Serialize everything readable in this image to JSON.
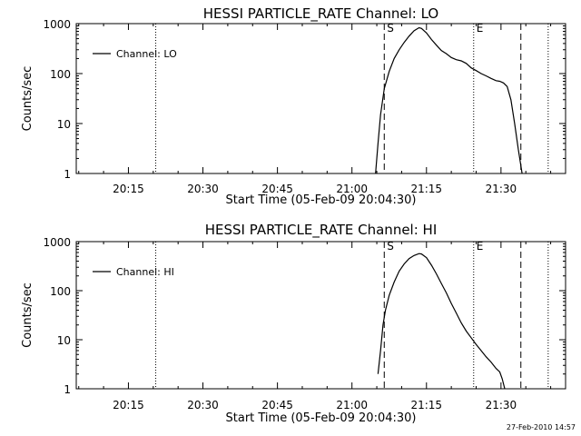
{
  "footer": {
    "timestamp": "27-Feb-2010 14:57"
  },
  "chart_data": [
    {
      "type": "line",
      "title": "HESSI PARTICLE_RATE Channel: LO",
      "xlabel": "Start Time (05-Feb-09 20:04:30)",
      "ylabel": "Counts/sec",
      "y_scale": "log",
      "ylim": [
        1,
        1000
      ],
      "xlim": [
        "20:04:30",
        "21:43:00"
      ],
      "x_tick_labels": [
        "20:15",
        "20:30",
        "20:45",
        "21:00",
        "21:15",
        "21:30"
      ],
      "y_tick_labels": [
        "1",
        "10",
        "100",
        "1000"
      ],
      "legend": {
        "placement": "top-left",
        "entries": [
          "Channel: LO"
        ]
      },
      "markers": [
        {
          "label": "S",
          "time": "21:06:30",
          "style": "dashed"
        },
        {
          "label": "E",
          "time": "21:24:30",
          "style": "dotted"
        },
        {
          "label": "",
          "time": "21:34:00",
          "style": "dashed"
        },
        {
          "label": "",
          "time": "20:20:30",
          "style": "dotted"
        },
        {
          "label": "",
          "time": "21:39:30",
          "style": "dotted"
        }
      ],
      "series": [
        {
          "name": "Channel: LO",
          "x": [
            "21:04:45",
            "21:05:15",
            "21:05:45",
            "21:06:30",
            "21:07:30",
            "21:08:30",
            "21:09:30",
            "21:10:30",
            "21:11:30",
            "21:12:30",
            "21:13:30",
            "21:14:00",
            "21:15:00",
            "21:16:00",
            "21:17:00",
            "21:18:00",
            "21:19:00",
            "21:20:00",
            "21:21:00",
            "21:22:00",
            "21:23:00",
            "21:24:00",
            "21:25:00",
            "21:26:00",
            "21:27:00",
            "21:28:00",
            "21:29:00",
            "21:29:45",
            "21:30:30",
            "21:31:15",
            "21:32:00",
            "21:32:45",
            "21:33:30",
            "21:34:15"
          ],
          "y": [
            1,
            4,
            15,
            50,
            110,
            200,
            300,
            420,
            560,
            720,
            830,
            800,
            650,
            480,
            370,
            290,
            250,
            210,
            190,
            180,
            160,
            130,
            115,
            100,
            90,
            80,
            72,
            70,
            65,
            55,
            30,
            10,
            3,
            1
          ]
        }
      ]
    },
    {
      "type": "line",
      "title": "HESSI PARTICLE_RATE Channel: HI",
      "xlabel": "Start Time (05-Feb-09 20:04:30)",
      "ylabel": "Counts/sec",
      "y_scale": "log",
      "ylim": [
        1,
        1000
      ],
      "xlim": [
        "20:04:30",
        "21:43:00"
      ],
      "x_tick_labels": [
        "20:15",
        "20:30",
        "20:45",
        "21:00",
        "21:15",
        "21:30"
      ],
      "y_tick_labels": [
        "1",
        "10",
        "100",
        "1000"
      ],
      "legend": {
        "placement": "top-left",
        "entries": [
          "Channel: HI"
        ]
      },
      "markers": [
        {
          "label": "S",
          "time": "21:06:30",
          "style": "dashed"
        },
        {
          "label": "E",
          "time": "21:24:30",
          "style": "dotted"
        },
        {
          "label": "",
          "time": "21:34:00",
          "style": "dashed"
        },
        {
          "label": "",
          "time": "20:20:30",
          "style": "dotted"
        },
        {
          "label": "",
          "time": "21:39:30",
          "style": "dotted"
        }
      ],
      "series": [
        {
          "name": "Channel: HI",
          "x": [
            "21:05:15",
            "21:05:45",
            "21:06:15",
            "21:06:45",
            "21:07:30",
            "21:08:30",
            "21:09:30",
            "21:10:30",
            "21:11:30",
            "21:12:30",
            "21:13:30",
            "21:14:00",
            "21:15:00",
            "21:16:00",
            "21:17:00",
            "21:18:00",
            "21:19:00",
            "21:20:00",
            "21:21:00",
            "21:22:00",
            "21:23:00",
            "21:24:00",
            "21:25:00",
            "21:26:00",
            "21:27:00",
            "21:28:00",
            "21:29:00",
            "21:29:45",
            "21:30:15",
            "21:30:45"
          ],
          "y": [
            2,
            6,
            20,
            40,
            80,
            150,
            250,
            350,
            450,
            520,
            570,
            560,
            470,
            330,
            220,
            140,
            90,
            55,
            35,
            22,
            15,
            11,
            8,
            6,
            4.5,
            3.5,
            2.6,
            2.2,
            1.6,
            1
          ]
        }
      ]
    }
  ]
}
